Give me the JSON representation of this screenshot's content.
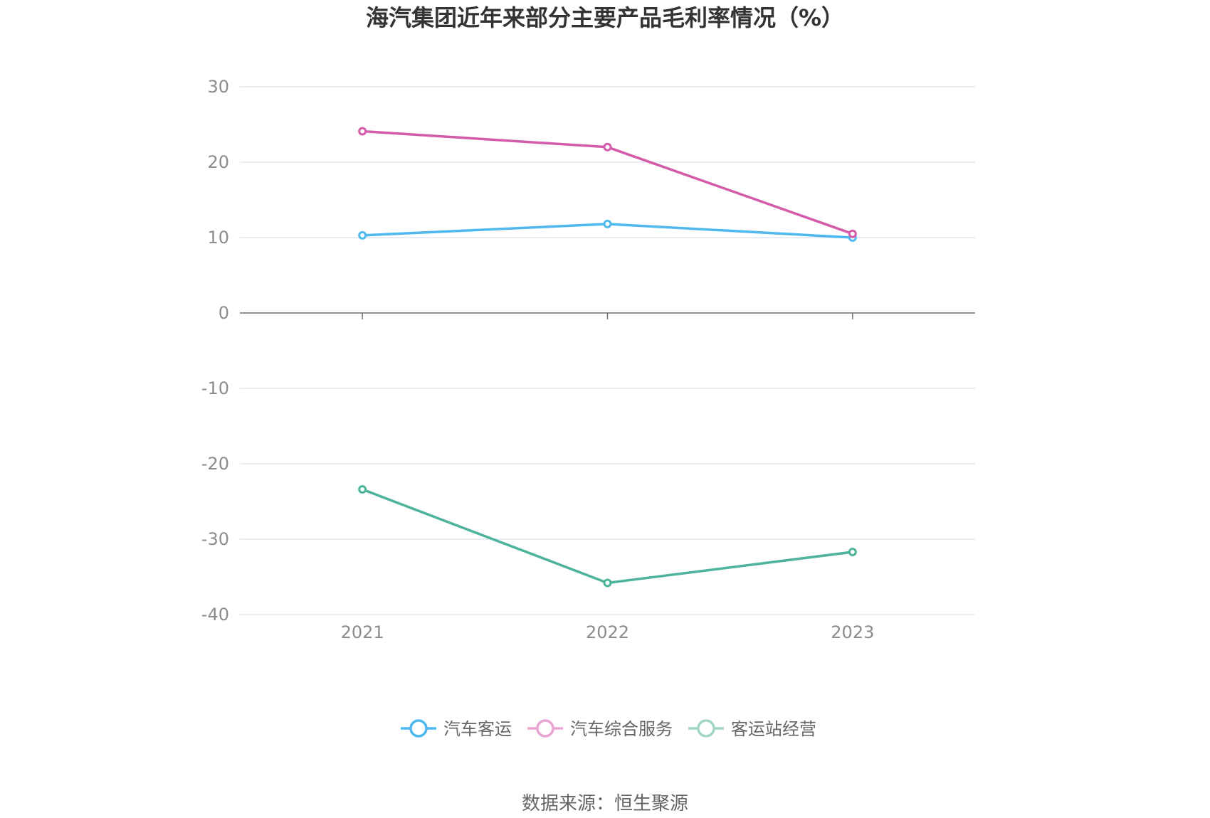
{
  "chart_data": {
    "type": "line",
    "title": "海汽集团近年来部分主要产品毛利率情况（%）",
    "x": [
      "2021",
      "2022",
      "2023"
    ],
    "series": [
      {
        "name": "汽车客运",
        "values": [
          10.3,
          11.8,
          10.0
        ],
        "color": "#4FB8EE"
      },
      {
        "name": "汽车综合服务",
        "values": [
          24.1,
          22.0,
          10.5
        ],
        "color": "#D35BAA"
      },
      {
        "name": "客运站经营",
        "values": [
          -23.4,
          -35.8,
          -31.7
        ],
        "color": "#4DB39A"
      }
    ],
    "ylim": [
      -40,
      30
    ],
    "yticks": [
      "30",
      "20",
      "10",
      "0",
      "-10",
      "-20",
      "-30",
      "-40"
    ],
    "grid": true,
    "legend_position": "bottom",
    "legend_colors": [
      "#4FB8EE",
      "#EBA3D3",
      "#9FD6C6"
    ]
  },
  "source": "数据来源：恒生聚源"
}
